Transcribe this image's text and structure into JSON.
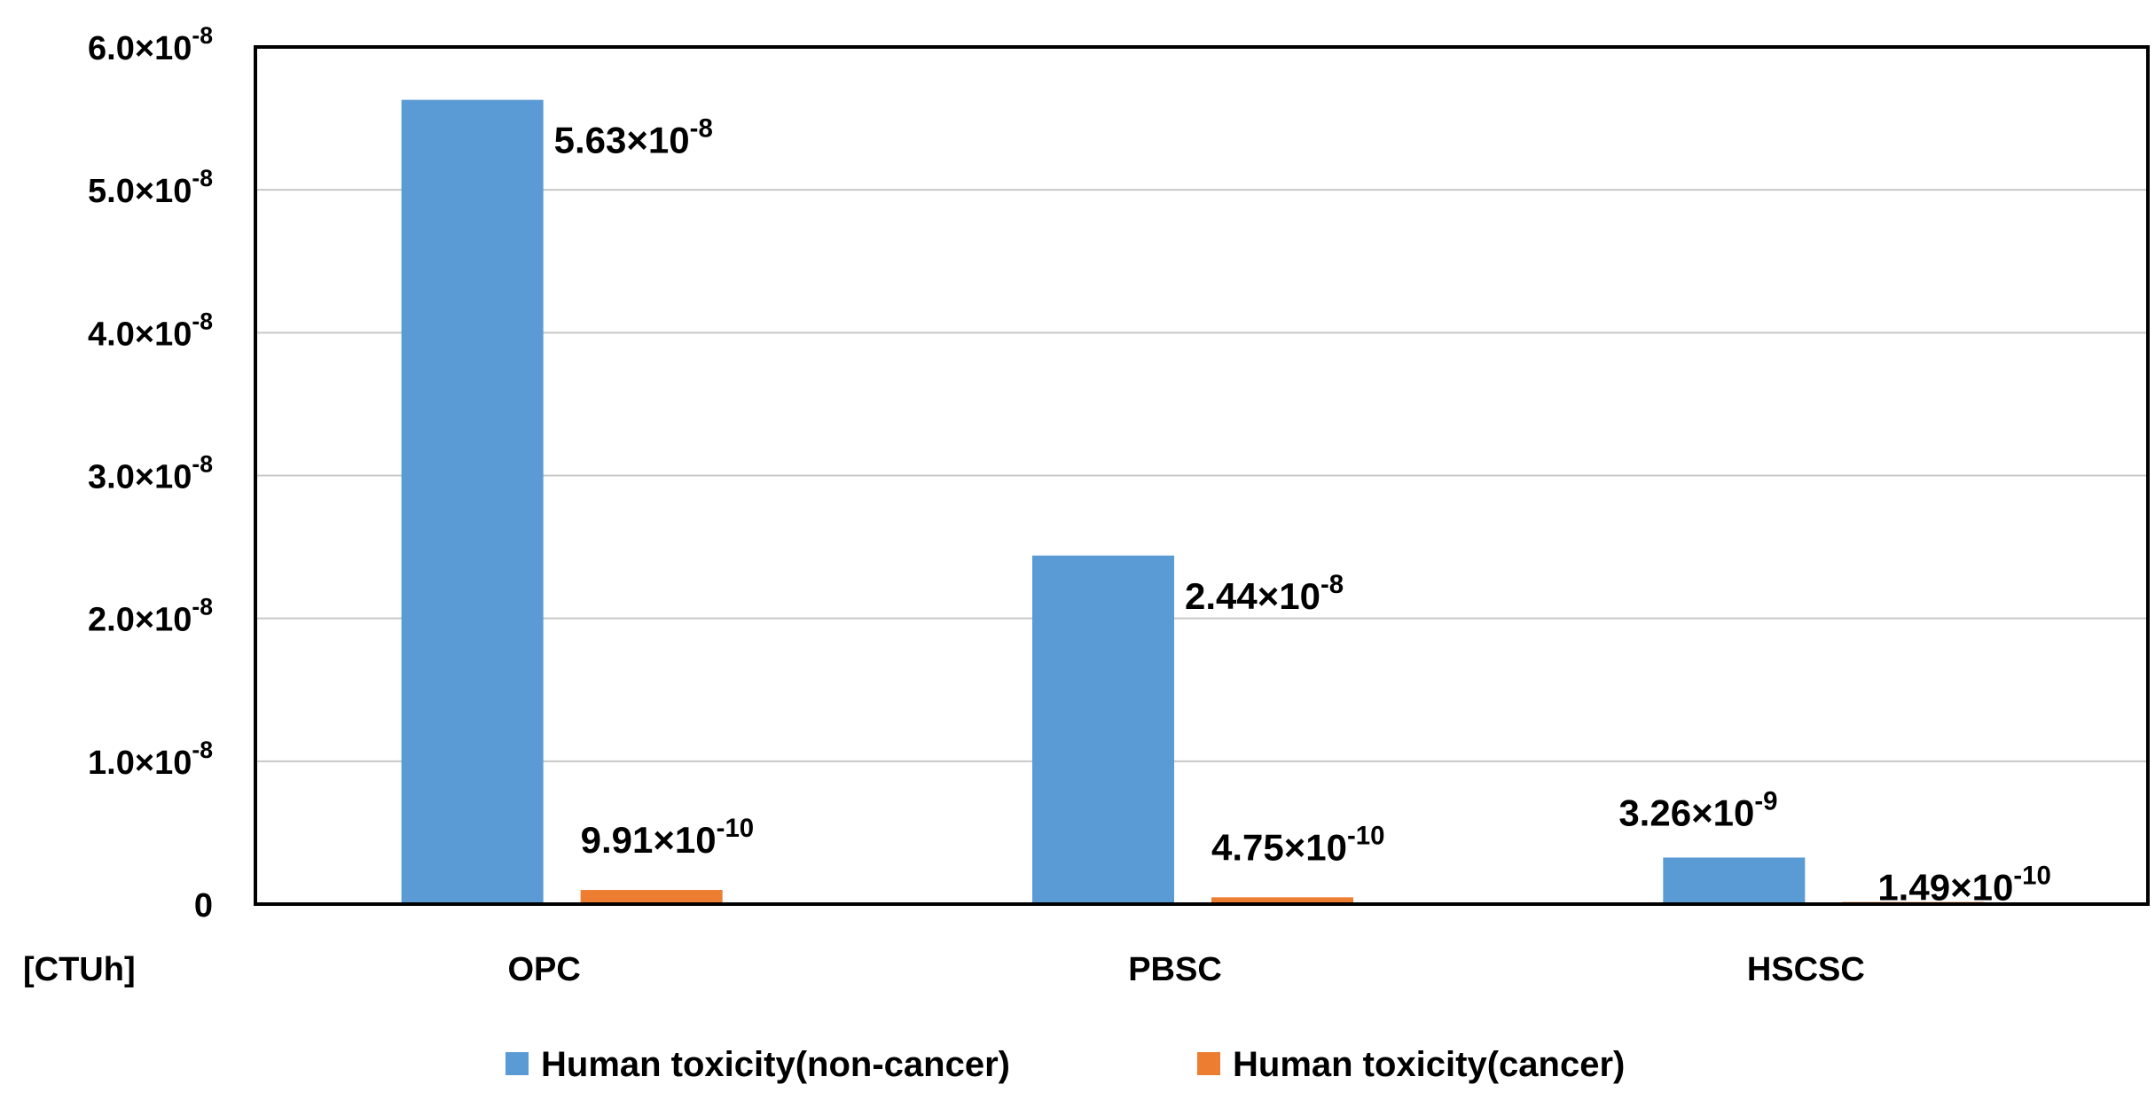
{
  "chart_data": {
    "type": "bar",
    "title": "",
    "xlabel": "",
    "ylabel": "",
    "unit_label": "[CTUh]",
    "categories": [
      "OPC",
      "PBSC",
      "HSCSC"
    ],
    "ylim": [
      0,
      6e-08
    ],
    "y_ticks": [
      0,
      1e-08,
      2e-08,
      3e-08,
      4e-08,
      5e-08,
      6e-08
    ],
    "y_tick_labels": [
      {
        "base": "0",
        "exp": ""
      },
      {
        "base": "1.0×10",
        "exp": "-8"
      },
      {
        "base": "2.0×10",
        "exp": "-8"
      },
      {
        "base": "3.0×10",
        "exp": "-8"
      },
      {
        "base": "4.0×10",
        "exp": "-8"
      },
      {
        "base": "5.0×10",
        "exp": "-8"
      },
      {
        "base": "6.0×10",
        "exp": "-8"
      }
    ],
    "grid": true,
    "legend_position": "bottom",
    "series": [
      {
        "name": "Human toxicity(non-cancer)",
        "color": "#5B9BD5",
        "values": [
          5.63e-08,
          2.44e-08,
          3.26e-09
        ],
        "labels": [
          {
            "base": "5.63×10",
            "exp": "-8"
          },
          {
            "base": "2.44×10",
            "exp": "-8"
          },
          {
            "base": "3.26×10",
            "exp": "-9"
          }
        ]
      },
      {
        "name": "Human toxicity(cancer)",
        "color": "#ED7D31",
        "values": [
          9.91e-10,
          4.75e-10,
          1.49e-10
        ],
        "labels": [
          {
            "base": "9.91×10",
            "exp": "-10"
          },
          {
            "base": "4.75×10",
            "exp": "-10"
          },
          {
            "base": "1.49×10",
            "exp": "-10"
          }
        ]
      }
    ]
  }
}
